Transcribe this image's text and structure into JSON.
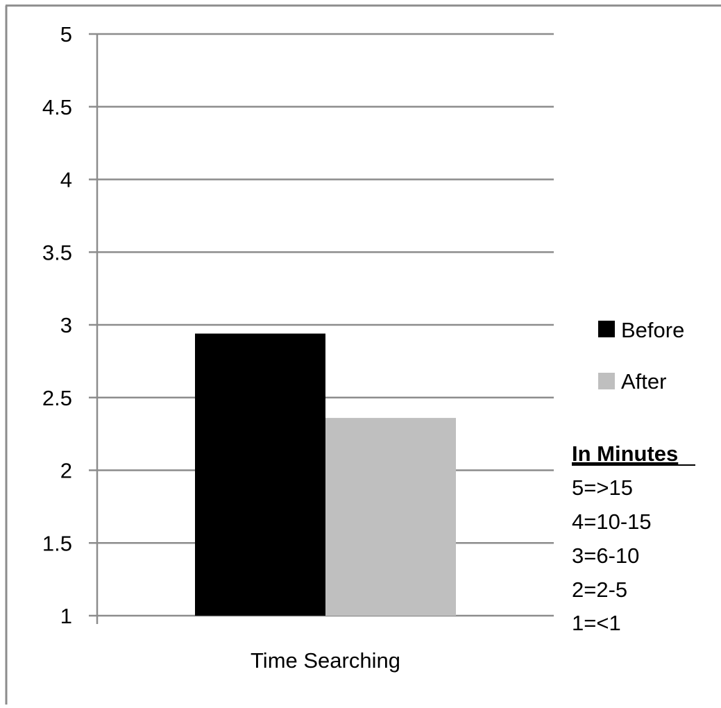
{
  "chart_data": {
    "type": "bar",
    "categories": [
      "Time Searching"
    ],
    "series": [
      {
        "name": "Before",
        "values": [
          2.94
        ],
        "color": "#000000"
      },
      {
        "name": "After",
        "values": [
          2.36
        ],
        "color": "#bfbfbf"
      }
    ],
    "ylim": [
      1,
      5
    ],
    "yticks": [
      1,
      1.5,
      2,
      2.5,
      3,
      3.5,
      4,
      4.5,
      5
    ],
    "ytick_labels": [
      "1",
      "1.5",
      "2",
      "2.5",
      "3",
      "3.5",
      "4",
      "4.5",
      "5"
    ],
    "grid": true,
    "legend_position": "right",
    "title": "",
    "xlabel": "",
    "ylabel": "",
    "annotation": {
      "heading": "In Minutes",
      "lines": [
        "5=>15",
        "4=10-15",
        "3=6-10",
        "2=2-5",
        "1=<1"
      ]
    }
  },
  "colors": {
    "gridline": "#8c8c8c",
    "axis": "#8c8c8c",
    "border": "#8c8c8c"
  }
}
